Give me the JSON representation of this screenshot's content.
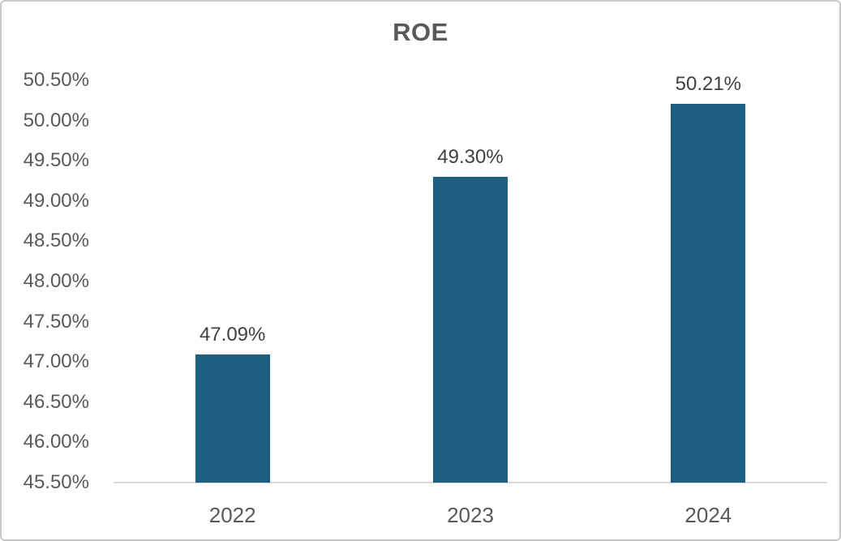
{
  "window": {
    "background_color": "#FFFFFF",
    "border_color": "#C8C8C8"
  },
  "chart_data": {
    "type": "bar",
    "title": "ROE",
    "categories": [
      "2022",
      "2023",
      "2024"
    ],
    "values": [
      47.09,
      49.3,
      50.21
    ],
    "value_labels": [
      "47.09%",
      "49.30%",
      "50.21%"
    ],
    "xlabel": "",
    "ylabel": "",
    "ylim": [
      45.5,
      50.5
    ],
    "ytick_values": [
      50.5,
      50.0,
      49.5,
      49.0,
      48.5,
      48.0,
      47.5,
      47.0,
      46.5,
      46.0,
      45.5
    ],
    "ytick_labels": [
      "50.50%",
      "50.00%",
      "49.50%",
      "49.00%",
      "48.50%",
      "48.00%",
      "47.50%",
      "47.00%",
      "46.50%",
      "46.00%",
      "45.50%"
    ],
    "grid": false,
    "legend": false,
    "legend_position": "none",
    "bar_color": "#1C5F80",
    "axis_line_color": "#D9D9D9",
    "title_color": "#595959",
    "tick_label_color": "#595959",
    "category_label_color": "#595959",
    "data_label_color": "#404040"
  }
}
